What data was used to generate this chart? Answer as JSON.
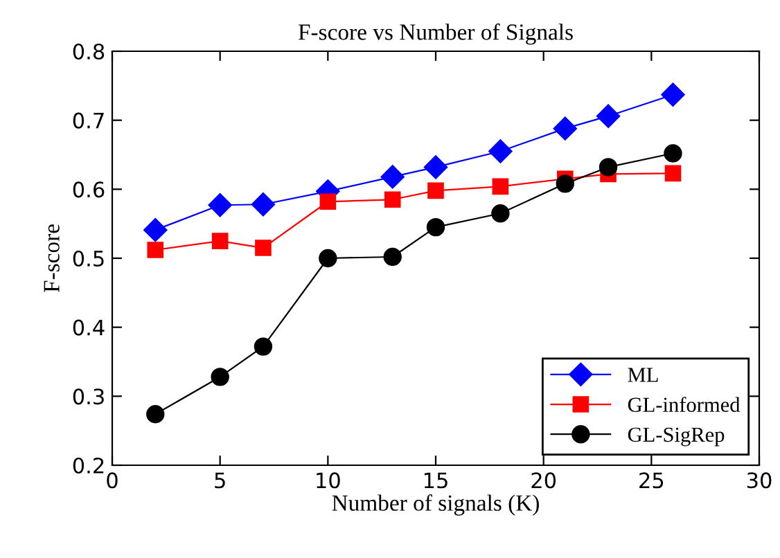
{
  "chart_data": {
    "type": "line",
    "title": "F-score vs Number of Signals",
    "xlabel": "Number of signals (K)",
    "ylabel": "F-score",
    "x": [
      2,
      5,
      7,
      10,
      13,
      15,
      18,
      21,
      23,
      26
    ],
    "series": [
      {
        "name": "ML",
        "color": "#0000ff",
        "marker": "diamond",
        "values": [
          0.541,
          0.577,
          0.578,
          0.597,
          0.618,
          0.632,
          0.655,
          0.688,
          0.706,
          0.737
        ]
      },
      {
        "name": "GL-informed",
        "color": "#ff0000",
        "marker": "square",
        "values": [
          0.512,
          0.525,
          0.515,
          0.582,
          0.585,
          0.598,
          0.604,
          0.615,
          0.622,
          0.623
        ]
      },
      {
        "name": "GL-SigRep",
        "color": "#000000",
        "marker": "circle",
        "values": [
          0.274,
          0.328,
          0.372,
          0.5,
          0.502,
          0.545,
          0.565,
          0.608,
          0.632,
          0.652
        ]
      }
    ],
    "xlim": [
      0,
      30
    ],
    "xticks": [
      0,
      5,
      10,
      15,
      20,
      25,
      30
    ],
    "ylim": [
      0.2,
      0.8
    ],
    "yticks": [
      0.2,
      0.3,
      0.4,
      0.5,
      0.6,
      0.7,
      0.8
    ],
    "grid": false,
    "legend": "bottom right",
    "line_style": "solid"
  }
}
